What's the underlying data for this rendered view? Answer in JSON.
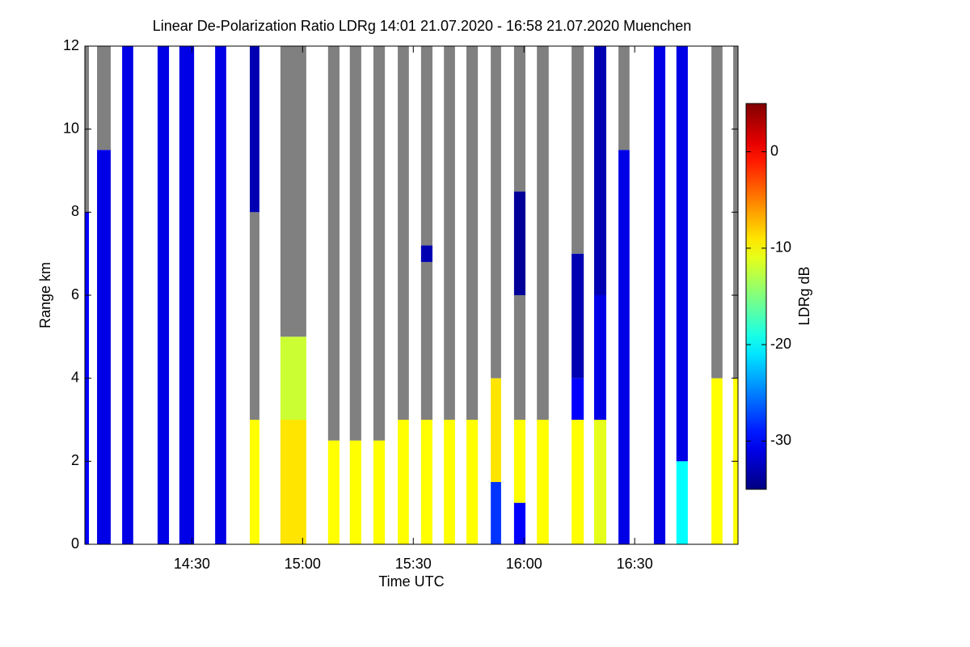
{
  "chart_data": {
    "type": "heatmap",
    "title": "Linear De-Polarization Ratio LDRg   14:01 21.07.2020 - 16:58 21.07.2020 Muenchen",
    "x_label": "Time UTC",
    "y_label": "Range km",
    "colorbar_label": "LDRg dB",
    "xlim": [
      841,
      1018
    ],
    "xticks": [
      {
        "value": 870,
        "label": "14:30"
      },
      {
        "value": 900,
        "label": "15:00"
      },
      {
        "value": 930,
        "label": "15:30"
      },
      {
        "value": 960,
        "label": "16:00"
      },
      {
        "value": 990,
        "label": "16:30"
      }
    ],
    "ylim": [
      0,
      12
    ],
    "yticks": [
      0,
      2,
      4,
      6,
      8,
      10,
      12
    ],
    "clim": [
      -35,
      5
    ],
    "cticks": [
      -30,
      -20,
      -10,
      0
    ],
    "colormap": "jet",
    "nodata_color": "#808080",
    "strips": [
      {
        "start": 841.0,
        "end": 842.1,
        "segments": [
          [
            0,
            8,
            -30
          ],
          [
            8,
            12,
            null
          ]
        ]
      },
      {
        "start": 844.3,
        "end": 848.0,
        "segments": [
          [
            0,
            9.5,
            -31
          ],
          [
            9.5,
            12,
            null
          ]
        ]
      },
      {
        "start": 851.1,
        "end": 854.1,
        "segments": [
          [
            0,
            12,
            -31
          ]
        ]
      },
      {
        "start": 860.7,
        "end": 863.8,
        "segments": [
          [
            0,
            12,
            -31
          ]
        ]
      },
      {
        "start": 866.6,
        "end": 870.6,
        "segments": [
          [
            0,
            12,
            -31
          ]
        ]
      },
      {
        "start": 876.3,
        "end": 879.3,
        "segments": [
          [
            0,
            12,
            -31
          ]
        ]
      },
      {
        "start": 885.7,
        "end": 888.3,
        "segments": [
          [
            0,
            3,
            -10
          ],
          [
            3,
            8,
            null
          ],
          [
            8,
            12,
            -33
          ]
        ]
      },
      {
        "start": 894.0,
        "end": 901.0,
        "segments": [
          [
            0,
            3,
            -9
          ],
          [
            3,
            5,
            -12
          ],
          [
            5,
            12,
            null
          ]
        ]
      },
      {
        "start": 906.9,
        "end": 910.0,
        "segments": [
          [
            0,
            2.5,
            -10
          ],
          [
            2.5,
            12,
            null
          ]
        ]
      },
      {
        "start": 912.8,
        "end": 915.9,
        "segments": [
          [
            0,
            2.5,
            -10
          ],
          [
            2.5,
            12,
            null
          ]
        ]
      },
      {
        "start": 919.2,
        "end": 922.3,
        "segments": [
          [
            0,
            2.5,
            -10
          ],
          [
            2.5,
            12,
            null
          ]
        ]
      },
      {
        "start": 925.8,
        "end": 928.8,
        "segments": [
          [
            0,
            3,
            -10
          ],
          [
            3,
            12,
            null
          ]
        ]
      },
      {
        "start": 932.1,
        "end": 935.2,
        "segments": [
          [
            0,
            3,
            -10
          ],
          [
            3,
            6.8,
            null
          ],
          [
            6.8,
            7.2,
            -33
          ],
          [
            7.2,
            12,
            null
          ]
        ]
      },
      {
        "start": 938.3,
        "end": 941.3,
        "segments": [
          [
            0,
            3,
            -10
          ],
          [
            3,
            12,
            null
          ]
        ]
      },
      {
        "start": 944.4,
        "end": 947.5,
        "segments": [
          [
            0,
            3,
            -10
          ],
          [
            3,
            12,
            null
          ]
        ]
      },
      {
        "start": 951.0,
        "end": 953.8,
        "segments": [
          [
            0,
            1.5,
            -28
          ],
          [
            1.5,
            4,
            -9
          ],
          [
            4,
            12,
            null
          ]
        ]
      },
      {
        "start": 957.3,
        "end": 960.4,
        "segments": [
          [
            0,
            1,
            -30
          ],
          [
            1,
            3,
            -10
          ],
          [
            3,
            6,
            null
          ],
          [
            6,
            8.5,
            -34
          ],
          [
            8.5,
            12,
            null
          ]
        ]
      },
      {
        "start": 963.5,
        "end": 966.7,
        "segments": [
          [
            0,
            3,
            -10
          ],
          [
            3,
            12,
            null
          ]
        ]
      },
      {
        "start": 972.9,
        "end": 976.2,
        "segments": [
          [
            0,
            3,
            -10
          ],
          [
            3,
            4,
            -30
          ],
          [
            4,
            7,
            -33
          ],
          [
            7,
            12,
            null
          ]
        ]
      },
      {
        "start": 979.0,
        "end": 982.3,
        "segments": [
          [
            0,
            3,
            -11
          ],
          [
            3,
            6,
            -31
          ],
          [
            6,
            12,
            -33
          ]
        ]
      },
      {
        "start": 985.6,
        "end": 988.6,
        "segments": [
          [
            0,
            9.5,
            -31
          ],
          [
            9.5,
            12,
            null
          ]
        ]
      },
      {
        "start": 995.2,
        "end": 998.3,
        "segments": [
          [
            0,
            12,
            -31
          ]
        ]
      },
      {
        "start": 1001.3,
        "end": 1004.4,
        "segments": [
          [
            0,
            2,
            -20
          ],
          [
            2,
            12,
            -31
          ]
        ]
      },
      {
        "start": 1010.8,
        "end": 1013.8,
        "segments": [
          [
            0,
            4,
            -10
          ],
          [
            4,
            12,
            null
          ]
        ]
      },
      {
        "start": 1016.7,
        "end": 1018.0,
        "segments": [
          [
            0,
            4,
            -10
          ],
          [
            4,
            12,
            null
          ]
        ]
      }
    ]
  }
}
